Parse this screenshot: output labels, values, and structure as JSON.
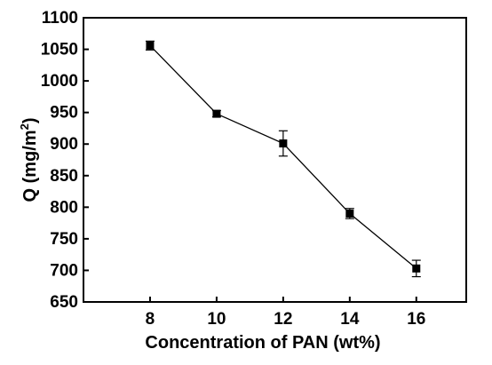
{
  "chart_data": {
    "type": "line",
    "x": [
      8,
      10,
      12,
      14,
      16
    ],
    "series": [
      {
        "values": [
          1056,
          948,
          901,
          790,
          703
        ],
        "errors": [
          7,
          5,
          20,
          8,
          13
        ],
        "marker": "square",
        "color": "#000000"
      }
    ],
    "title": "",
    "xlabel": "Concentration of PAN (wt%)",
    "ylabel_main": "Q (mg/m",
    "ylabel_sup": "2",
    "ylabel_end": ")",
    "xlim": [
      6,
      17.5
    ],
    "ylim": [
      650,
      1100
    ],
    "xticks": [
      8,
      10,
      12,
      14,
      16
    ],
    "yticks": [
      650,
      700,
      750,
      800,
      850,
      900,
      950,
      1000,
      1050,
      1100
    ],
    "grid": false,
    "legend": "none"
  }
}
